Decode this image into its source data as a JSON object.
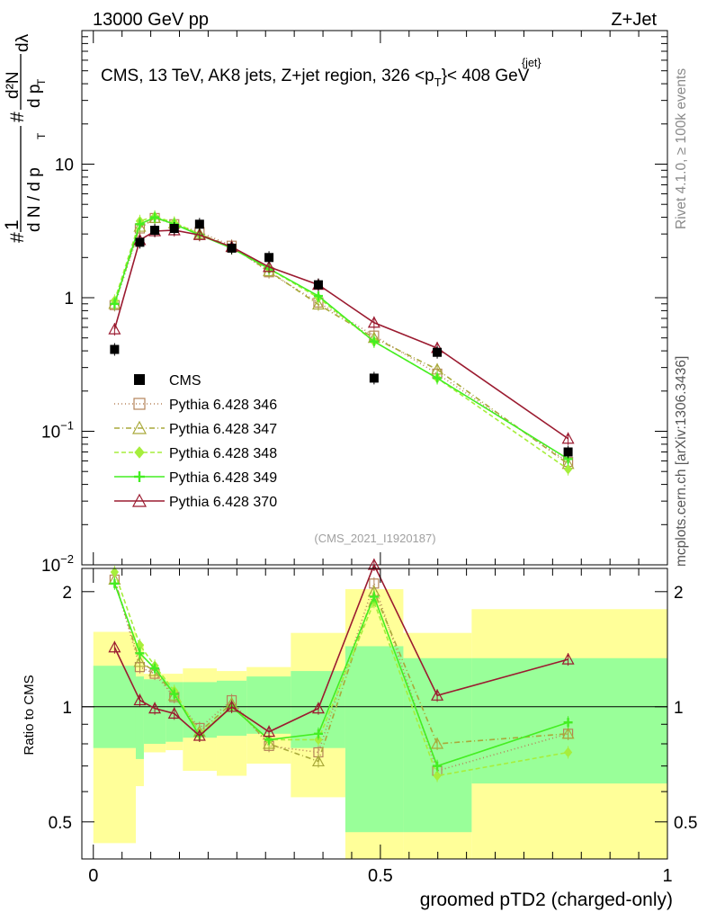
{
  "header": {
    "left": "13000 GeV pp",
    "right": "Z+Jet"
  },
  "side_labels": {
    "rivet": "Rivet 4.1.0, ≥ 100k events",
    "mcplots": "mcplots.cern.ch [arXiv:1306.3436]"
  },
  "chart_data": [
    {
      "type": "line",
      "panel": "main",
      "title_parts": {
        "prefix": "CMS, 13 TeV, AK8 jets, Z+jet region, 326 <p",
        "sup": "{jet}",
        "sub": "T",
        "suffix": "}< 408 GeV"
      },
      "analysis_id": "(CMS_2021_I1920187)",
      "ylabel_parts": {
        "hash": "#",
        "frac1_num": "1",
        "frac1_den": "d N / d p",
        "frac2_num": "d²N",
        "frac2_den": "d p",
        "dl": "dλ",
        "sub": "T"
      },
      "yscale": "log",
      "ylim": [
        0.01,
        100
      ],
      "xlim": [
        -0.02,
        1.0
      ],
      "yticks": [
        {
          "value": 0.01,
          "base": "10",
          "exp": "−2"
        },
        {
          "value": 0.1,
          "base": "10",
          "exp": "−1"
        },
        {
          "value": 1,
          "base": "1",
          "exp": ""
        },
        {
          "value": 10,
          "base": "10",
          "exp": ""
        }
      ],
      "legend": {
        "position": "middle-left"
      },
      "series": [
        {
          "name": "CMS",
          "marker": "filled-square",
          "color": "#000000",
          "dash": "none",
          "x": [
            0.037,
            0.081,
            0.107,
            0.141,
            0.185,
            0.241,
            0.306,
            0.392,
            0.489,
            0.599,
            0.827
          ],
          "y": [
            0.41,
            2.6,
            3.2,
            3.3,
            3.55,
            2.35,
            2.0,
            1.25,
            0.25,
            0.39,
            0.07
          ]
        },
        {
          "name": "Pythia 6.428 346",
          "marker": "open-square",
          "color": "#b5845a",
          "dash": "1,3",
          "x": [
            0.037,
            0.081,
            0.107,
            0.141,
            0.185,
            0.241,
            0.306,
            0.392,
            0.489,
            0.599,
            0.827
          ],
          "y": [
            0.88,
            3.3,
            3.95,
            3.55,
            3.1,
            2.45,
            1.55,
            0.92,
            0.52,
            0.27,
            0.059
          ]
        },
        {
          "name": "Pythia 6.428 347",
          "marker": "open-triangle",
          "color": "#a9a93a",
          "dash": "6,3,1,3",
          "x": [
            0.037,
            0.081,
            0.107,
            0.141,
            0.185,
            0.241,
            0.306,
            0.392,
            0.489,
            0.599,
            0.827
          ],
          "y": [
            0.9,
            3.4,
            3.95,
            3.6,
            3.0,
            2.4,
            1.58,
            0.89,
            0.5,
            0.29,
            0.057
          ]
        },
        {
          "name": "Pythia 6.428 348",
          "marker": "diamond",
          "color": "#a6ee3c",
          "dash": "5,3",
          "x": [
            0.037,
            0.081,
            0.107,
            0.141,
            0.185,
            0.241,
            0.306,
            0.392,
            0.489,
            0.599,
            0.827
          ],
          "y": [
            0.95,
            3.75,
            4.05,
            3.65,
            3.0,
            2.35,
            1.65,
            1.0,
            0.47,
            0.25,
            0.052
          ]
        },
        {
          "name": "Pythia 6.428 349",
          "marker": "cross",
          "color": "#44ee22",
          "dash": "none",
          "x": [
            0.037,
            0.081,
            0.107,
            0.141,
            0.185,
            0.241,
            0.306,
            0.392,
            0.489,
            0.599,
            0.827
          ],
          "y": [
            0.9,
            3.55,
            4.0,
            3.55,
            2.95,
            2.35,
            1.65,
            1.03,
            0.47,
            0.25,
            0.062
          ]
        },
        {
          "name": "Pythia 6.428 370",
          "marker": "open-triangle",
          "color": "#9b1b30",
          "dash": "none",
          "x": [
            0.037,
            0.081,
            0.107,
            0.141,
            0.185,
            0.241,
            0.306,
            0.392,
            0.489,
            0.599,
            0.827
          ],
          "y": [
            0.58,
            2.7,
            3.15,
            3.2,
            2.95,
            2.4,
            1.7,
            1.25,
            0.65,
            0.42,
            0.088
          ]
        }
      ]
    },
    {
      "type": "line",
      "panel": "ratio",
      "ylabel": "Ratio to CMS",
      "yscale": "log",
      "ylim": [
        0.4,
        2.3
      ],
      "xlim": [
        -0.02,
        1.0
      ],
      "xlabel": "groomed pTD2 (charged-only)",
      "xticks": [
        {
          "value": 0,
          "label": "0"
        },
        {
          "value": 0.5,
          "label": "0.5"
        },
        {
          "value": 1,
          "label": "1"
        }
      ],
      "yticks": [
        {
          "value": 0.5,
          "label": "0.5"
        },
        {
          "value": 1,
          "label": "1"
        },
        {
          "value": 2,
          "label": "2"
        }
      ],
      "bands": {
        "bin_edges": [
          0.0,
          0.074,
          0.088,
          0.126,
          0.156,
          0.215,
          0.267,
          0.344,
          0.439,
          0.54,
          0.659,
          1.0
        ],
        "stat_low": [
          0.78,
          0.73,
          0.8,
          0.81,
          0.83,
          0.84,
          0.85,
          0.78,
          0.47,
          0.47,
          0.63
        ],
        "stat_high": [
          1.28,
          1.2,
          1.18,
          1.16,
          1.16,
          1.17,
          1.2,
          1.24,
          1.44,
          1.34,
          1.34
        ],
        "total_low": [
          0.44,
          0.62,
          0.76,
          0.77,
          0.68,
          0.66,
          0.71,
          0.58,
          0.35,
          0.38,
          0.35
        ],
        "total_high": [
          1.57,
          1.46,
          1.22,
          1.22,
          1.26,
          1.24,
          1.27,
          1.56,
          2.03,
          1.56,
          1.8
        ]
      },
      "series": [
        {
          "name": "Pythia 6.428 346",
          "marker": "open-square",
          "color": "#b5845a",
          "dash": "1,3",
          "x": [
            0.037,
            0.081,
            0.107,
            0.141,
            0.185,
            0.241,
            0.306,
            0.392,
            0.489,
            0.599,
            0.827
          ],
          "y": [
            2.15,
            1.27,
            1.22,
            1.06,
            0.88,
            1.04,
            0.79,
            0.76,
            2.1,
            0.68,
            0.85
          ]
        },
        {
          "name": "Pythia 6.428 347",
          "marker": "open-triangle",
          "color": "#a9a93a",
          "dash": "6,3,1,3",
          "x": [
            0.037,
            0.081,
            0.107,
            0.141,
            0.185,
            0.241,
            0.306,
            0.392,
            0.489,
            0.599,
            0.827
          ],
          "y": [
            2.15,
            1.31,
            1.24,
            1.07,
            0.86,
            1.02,
            0.8,
            0.72,
            2.0,
            0.8,
            0.85
          ]
        },
        {
          "name": "Pythia 6.428 348",
          "marker": "diamond",
          "color": "#a6ee3c",
          "dash": "5,3",
          "x": [
            0.037,
            0.081,
            0.107,
            0.141,
            0.185,
            0.241,
            0.306,
            0.392,
            0.489,
            0.599,
            0.827
          ],
          "y": [
            2.25,
            1.45,
            1.28,
            1.1,
            0.85,
            1.0,
            0.82,
            0.82,
            1.88,
            0.66,
            0.76
          ]
        },
        {
          "name": "Pythia 6.428 349",
          "marker": "cross",
          "color": "#44ee22",
          "dash": "none",
          "x": [
            0.037,
            0.081,
            0.107,
            0.141,
            0.185,
            0.241,
            0.306,
            0.392,
            0.489,
            0.599,
            0.827
          ],
          "y": [
            2.1,
            1.38,
            1.26,
            1.08,
            0.84,
            1.0,
            0.82,
            0.85,
            1.94,
            0.7,
            0.91
          ]
        },
        {
          "name": "Pythia 6.428 370",
          "marker": "open-triangle",
          "color": "#9b1b30",
          "dash": "none",
          "x": [
            0.037,
            0.081,
            0.107,
            0.141,
            0.185,
            0.241,
            0.306,
            0.392,
            0.489,
            0.599,
            0.827
          ],
          "y": [
            1.43,
            1.04,
            0.99,
            0.96,
            0.84,
            1.0,
            0.86,
            0.99,
            2.35,
            1.07,
            1.33
          ]
        }
      ]
    }
  ]
}
